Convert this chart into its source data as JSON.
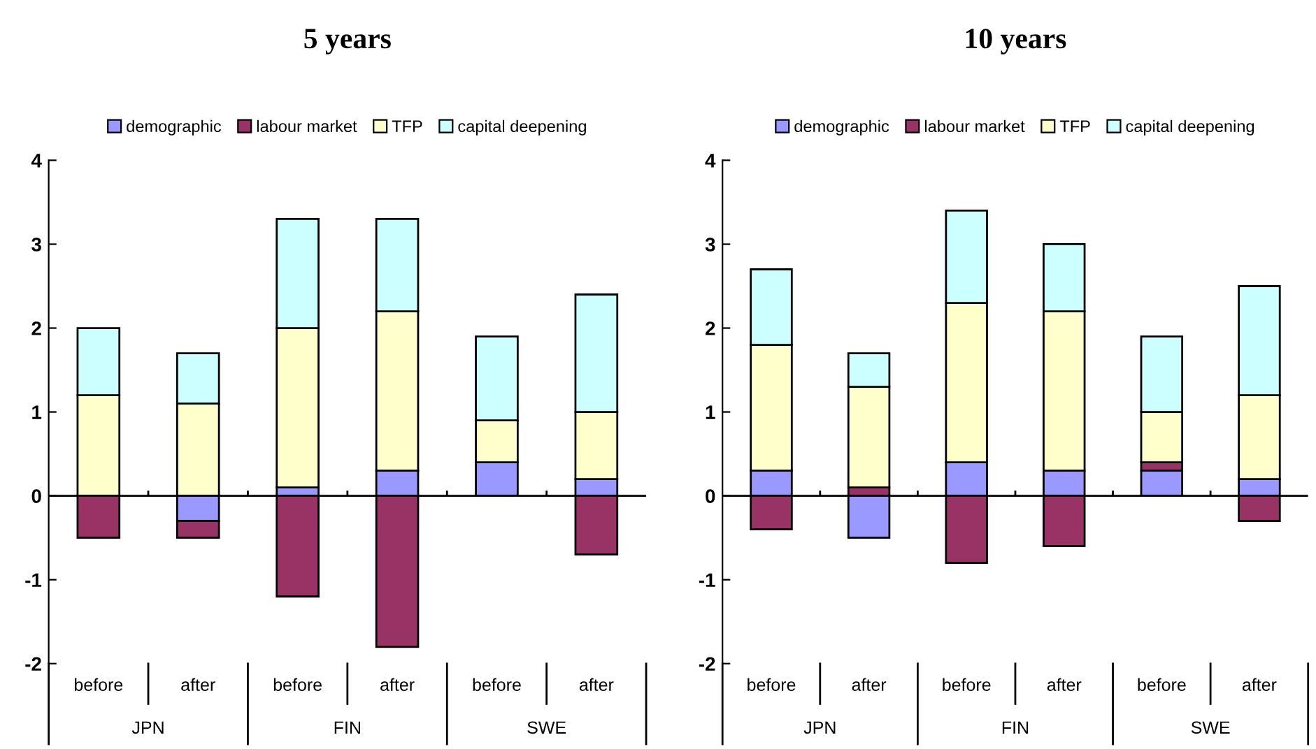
{
  "chart_data": [
    {
      "type": "bar",
      "title": "5 years",
      "stacked": true,
      "categories": [
        "before",
        "after",
        "before",
        "after",
        "before",
        "after"
      ],
      "annotations": [
        "JPN",
        "FIN",
        "SWE"
      ],
      "ylim": [
        -2,
        4
      ],
      "yticks": [
        -2,
        -1,
        0,
        1,
        2,
        3,
        4
      ],
      "grid": false,
      "legend": "top",
      "ref_lines": [
        {
          "axis": "y",
          "value": 0,
          "color": "#000000"
        }
      ],
      "series": [
        {
          "name": "demographic",
          "color": "#9999ff",
          "values": [
            0,
            -0.3,
            0.1,
            0.3,
            0.4,
            0.2
          ]
        },
        {
          "name": "labour market",
          "color": "#993366",
          "values": [
            -0.5,
            -0.2,
            -1.2,
            -1.8,
            0,
            -0.7
          ]
        },
        {
          "name": "TFP",
          "color": "#ffffcc",
          "values": [
            1.2,
            1.1,
            1.9,
            1.9,
            0.5,
            0.8
          ]
        },
        {
          "name": "capital deepening",
          "color": "#ccffff",
          "values": [
            0.8,
            0.6,
            1.3,
            1.1,
            1.0,
            1.4
          ]
        }
      ]
    },
    {
      "type": "bar",
      "title": "10 years",
      "stacked": true,
      "categories": [
        "before",
        "after",
        "before",
        "after",
        "before",
        "after"
      ],
      "annotations": [
        "JPN",
        "FIN",
        "SWE"
      ],
      "ylim": [
        -2,
        4
      ],
      "yticks": [
        -2,
        -1,
        0,
        1,
        2,
        3,
        4
      ],
      "grid": false,
      "legend": "top",
      "ref_lines": [
        {
          "axis": "y",
          "value": 0,
          "color": "#000000"
        }
      ],
      "series": [
        {
          "name": "demographic",
          "color": "#9999ff",
          "values": [
            0.3,
            -0.5,
            0.4,
            0.3,
            0.3,
            0.2
          ]
        },
        {
          "name": "labour market",
          "color": "#993366",
          "values": [
            -0.4,
            0.1,
            -0.8,
            -0.6,
            0.1,
            -0.3
          ]
        },
        {
          "name": "TFP",
          "color": "#ffffcc",
          "values": [
            1.5,
            1.2,
            1.9,
            1.9,
            0.6,
            1.0
          ]
        },
        {
          "name": "capital deepening",
          "color": "#ccffff",
          "values": [
            0.9,
            0.4,
            1.1,
            0.8,
            0.9,
            1.3
          ]
        }
      ]
    }
  ]
}
